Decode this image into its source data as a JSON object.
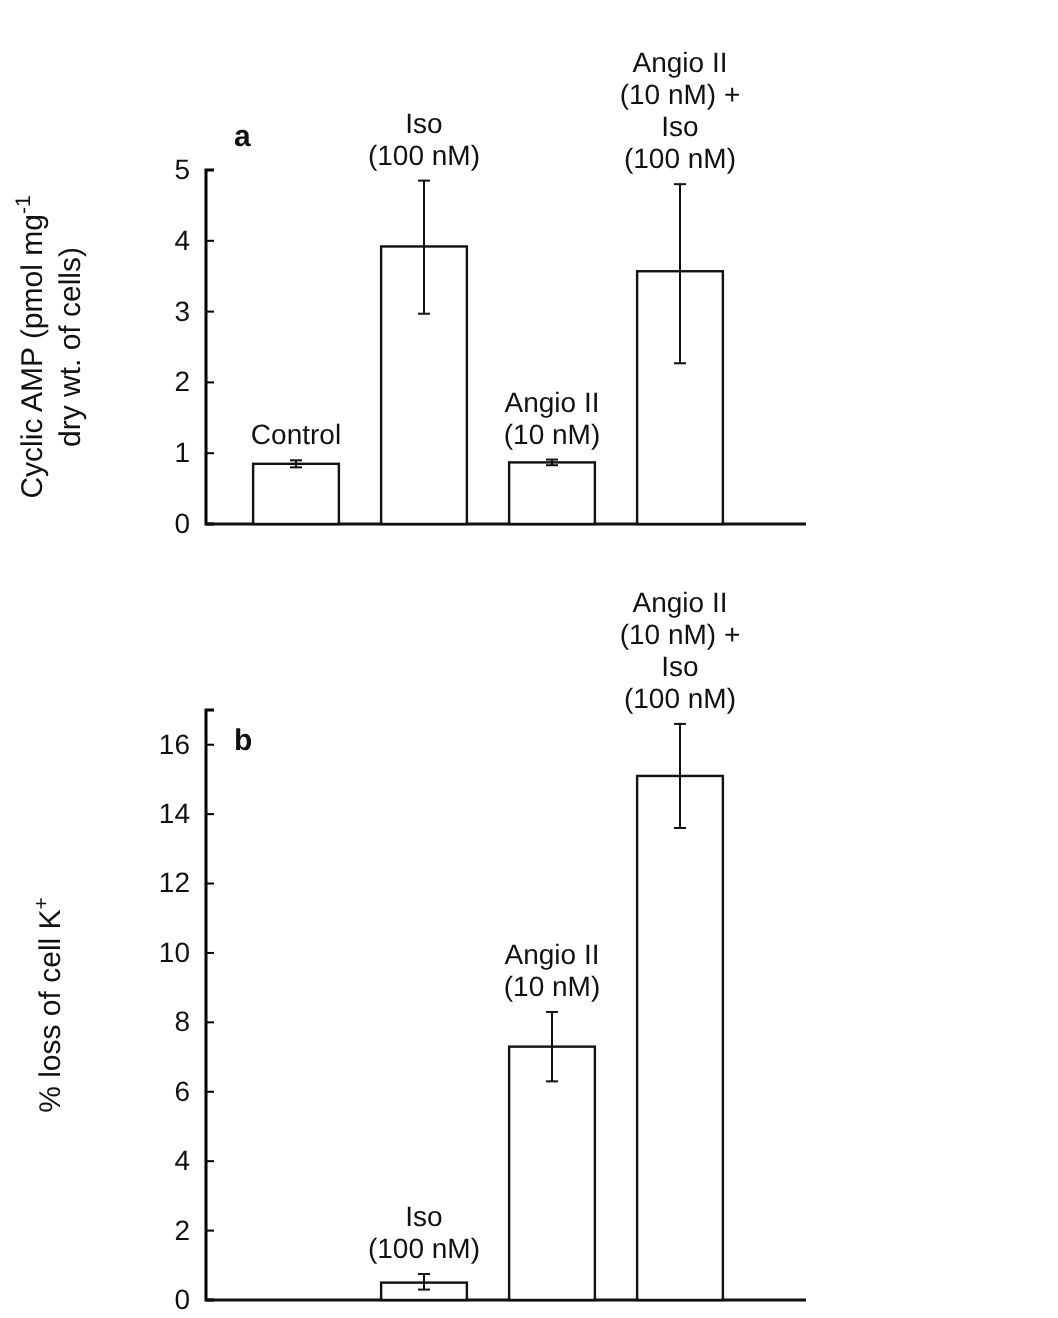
{
  "chart_data": [
    {
      "type": "bar",
      "title": "a",
      "ylabel": "Cyclic AMP (pmol mg$^{-1}$ dry wt. of cells)",
      "categories": [
        "Control",
        "Iso (100 nM)",
        "Angio II (10 nM)",
        "Angio II (10 nM) + Iso (100 nM)"
      ],
      "values": [
        0.85,
        3.92,
        0.87,
        3.57
      ],
      "errors": [
        [
          0.8,
          0.9
        ],
        [
          2.97,
          4.85
        ],
        [
          0.83,
          0.91
        ],
        [
          2.27,
          4.8
        ]
      ],
      "color": "#ffffff",
      "ylim": [
        0,
        5
      ],
      "yticks": [
        0,
        1,
        2,
        3,
        4,
        5
      ],
      "grid": false
    },
    {
      "type": "bar",
      "title": "b",
      "ylabel": "% loss of cell K$^{+}$",
      "categories": [
        null,
        "Iso (100 nM)",
        "Angio II (10 nM)",
        "Angio II (10 nM) + Iso (100 nM)"
      ],
      "values": [
        null,
        0.5,
        7.3,
        15.1
      ],
      "errors": [
        null,
        [
          0.3,
          0.75
        ],
        [
          6.3,
          8.3
        ],
        [
          13.6,
          16.6
        ]
      ],
      "color": "#ffffff",
      "ylim": [
        0,
        17
      ],
      "yticks": [
        0,
        2,
        4,
        6,
        8,
        10,
        12,
        14,
        16
      ],
      "grid": false
    }
  ]
}
